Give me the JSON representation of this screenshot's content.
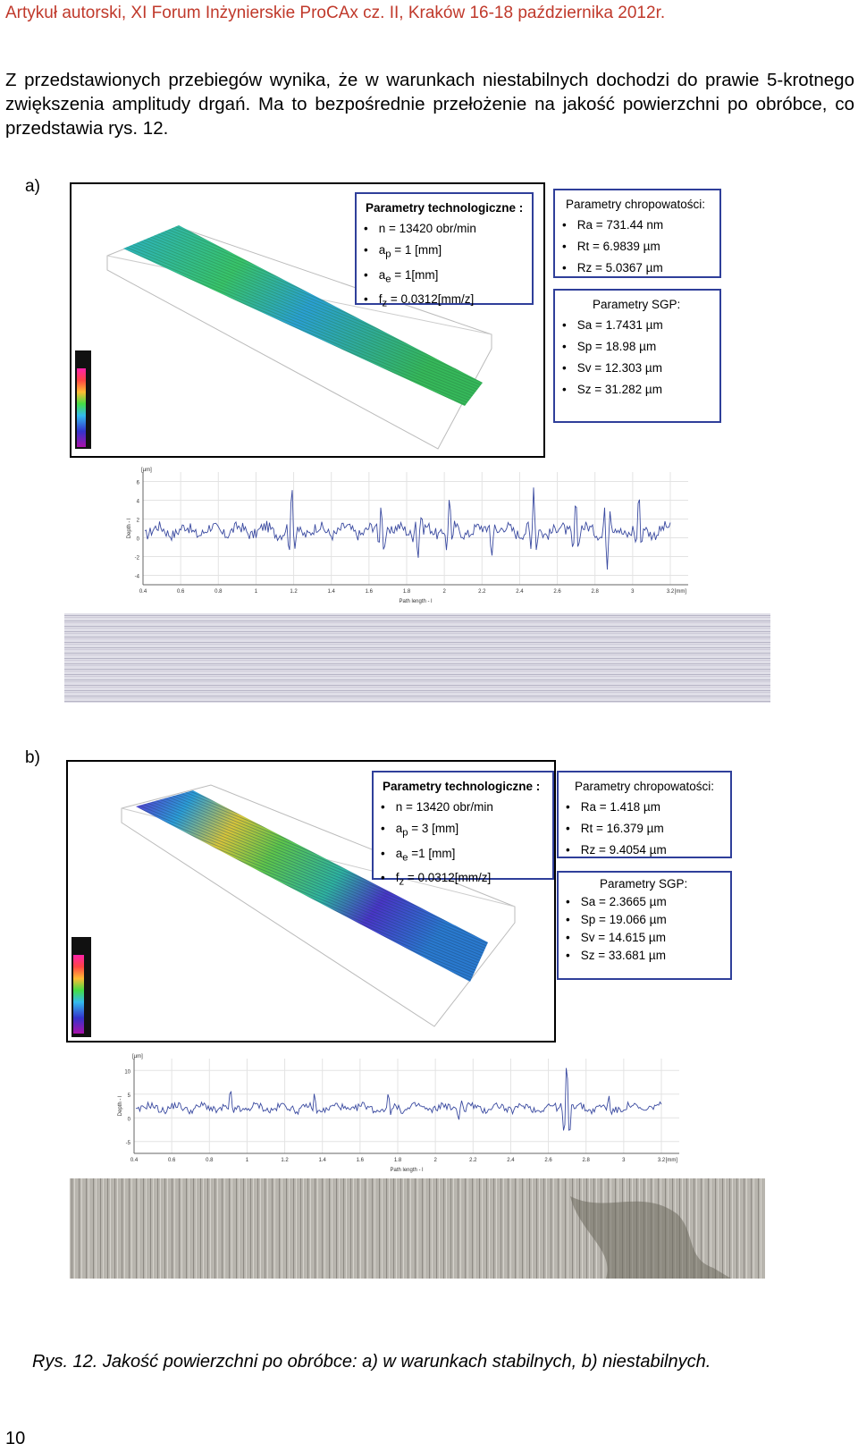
{
  "header": "Artykuł autorski, XI Forum Inżynierskie ProCAx cz. II, Kraków 16-18 października 2012r.",
  "intro": "Z przedstawionych przebiegów wynika, że w warunkach niestabilnych dochodzi do prawie 5-krotnego zwiększenia amplitudy drgań. Ma to bezpośrednie przełożenie na jakość powierzchni po obróbce, co przedstawia rys. 12.",
  "panels": [
    {
      "letter": "a)",
      "tech_params": {
        "title": "Parametry technologiczne  :",
        "items": [
          "n = 13420 obr/min",
          "a",
          "a",
          "f"
        ],
        "n": "n = 13420 obr/min",
        "ap_sym": "a",
        "ap_sub": "p",
        "ap_val": " = 1 [mm]",
        "ae_sym": "a",
        "ae_sub": "e",
        "ae_val": " = 1[mm]",
        "fz_sym": "f",
        "fz_sub": "z",
        "fz_val": " = 0.0312[mm/z]"
      },
      "roughness": {
        "title": "Parametry chropowatości:",
        "items": [
          "Ra = 731.44  nm",
          "Rt = 6.9839   µm",
          "Rz = 5.0367  µm"
        ]
      },
      "sgp": {
        "title": "Parametry SGP:",
        "items": [
          "Sa = 1.7431  µm",
          "Sp = 18.98    µm",
          "Sv = 12.303  µm",
          "Sz = 31.282  µm"
        ]
      }
    },
    {
      "letter": "b)",
      "tech_params": {
        "title": "Parametry technologiczne  :",
        "n": "n = 13420 obr/min",
        "ap_sym": "a",
        "ap_sub": "p",
        "ap_val": " =  3 [mm]",
        "ae_sym": "a",
        "ae_sub": "e",
        "ae_val": " =1 [mm]",
        "fz_sym": "f",
        "fz_sub": "z",
        "fz_val": " = 0.0312[mm/z]"
      },
      "roughness": {
        "title": "Parametry chropowatości:",
        "items": [
          "Ra = 1.418  µm",
          "Rt = 16.379  µm",
          "Rz = 9.4054  µm"
        ]
      },
      "sgp": {
        "title": "Parametry SGP:",
        "items": [
          "Sa = 2.3665  µm",
          "Sp = 19.066  µm",
          "Sv = 14.615  µm",
          "Sz = 33.681  µm"
        ]
      }
    }
  ],
  "profiles": [
    {
      "ylabel": "Depth - l",
      "xlabel": "Path length - l",
      "yunit": "[µm]",
      "xunit": "[mm]",
      "yticks": [
        "6",
        "4",
        "2",
        "0",
        "-2",
        "-4"
      ],
      "xticks": [
        "0.4",
        "0.6",
        "0.8",
        "1",
        "1.2",
        "1.4",
        "1.6",
        "1.8",
        "2",
        "2.2",
        "2.4",
        "2.6",
        "2.8",
        "3",
        "3.2"
      ]
    },
    {
      "ylabel": "Depth - l",
      "xlabel": "Path length - l",
      "yunit": "[µm]",
      "xunit": "[mm]",
      "yticks": [
        "10",
        "5",
        "0",
        "-5"
      ],
      "xticks": [
        "0.4",
        "0.6",
        "0.8",
        "1",
        "1.2",
        "1.4",
        "1.6",
        "1.8",
        "2",
        "2.2",
        "2.4",
        "2.6",
        "2.8",
        "3",
        "3.2"
      ]
    }
  ],
  "caption": "Rys. 12. Jakość powierzchni po obróbce: a) w warunkach stabilnych, b) niestabilnych.",
  "page_number": "10",
  "colors": {
    "header": "#c0392b",
    "box_border": "#2f3f9a"
  }
}
